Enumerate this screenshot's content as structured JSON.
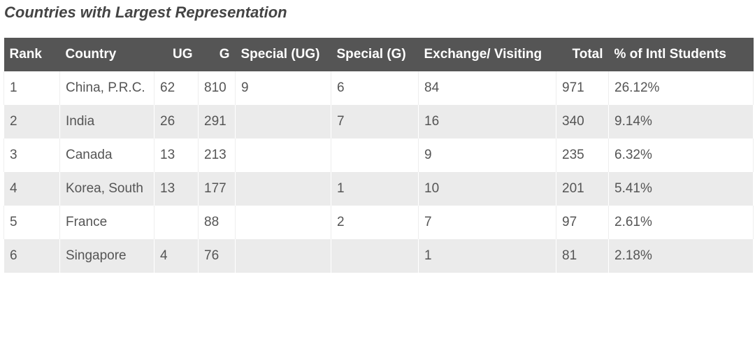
{
  "header": {
    "title": "Countries with Largest Representation"
  },
  "table": {
    "columns": [
      "Rank",
      "Country",
      "UG",
      "G",
      "Special (UG)",
      "Special (G)",
      "Exchange/ Visiting",
      "Total",
      "% of Intl Students"
    ],
    "rows": [
      [
        "1",
        "China, P.R.C.",
        "62",
        "810",
        "9",
        "6",
        "84",
        "971",
        "26.12%"
      ],
      [
        "2",
        "India",
        "26",
        "291",
        null,
        "7",
        "16",
        "340",
        "9.14%"
      ],
      [
        "3",
        "Canada",
        "13",
        "213",
        null,
        null,
        "9",
        "235",
        "6.32%"
      ],
      [
        "4",
        "Korea, South",
        "13",
        "177",
        null,
        "1",
        "10",
        "201",
        "5.41%"
      ],
      [
        "5",
        "France",
        null,
        "88",
        null,
        "2",
        "7",
        "97",
        "2.61%"
      ],
      [
        "6",
        "Singapore",
        "4",
        "76",
        null,
        null,
        "1",
        "81",
        "2.18%"
      ]
    ]
  }
}
